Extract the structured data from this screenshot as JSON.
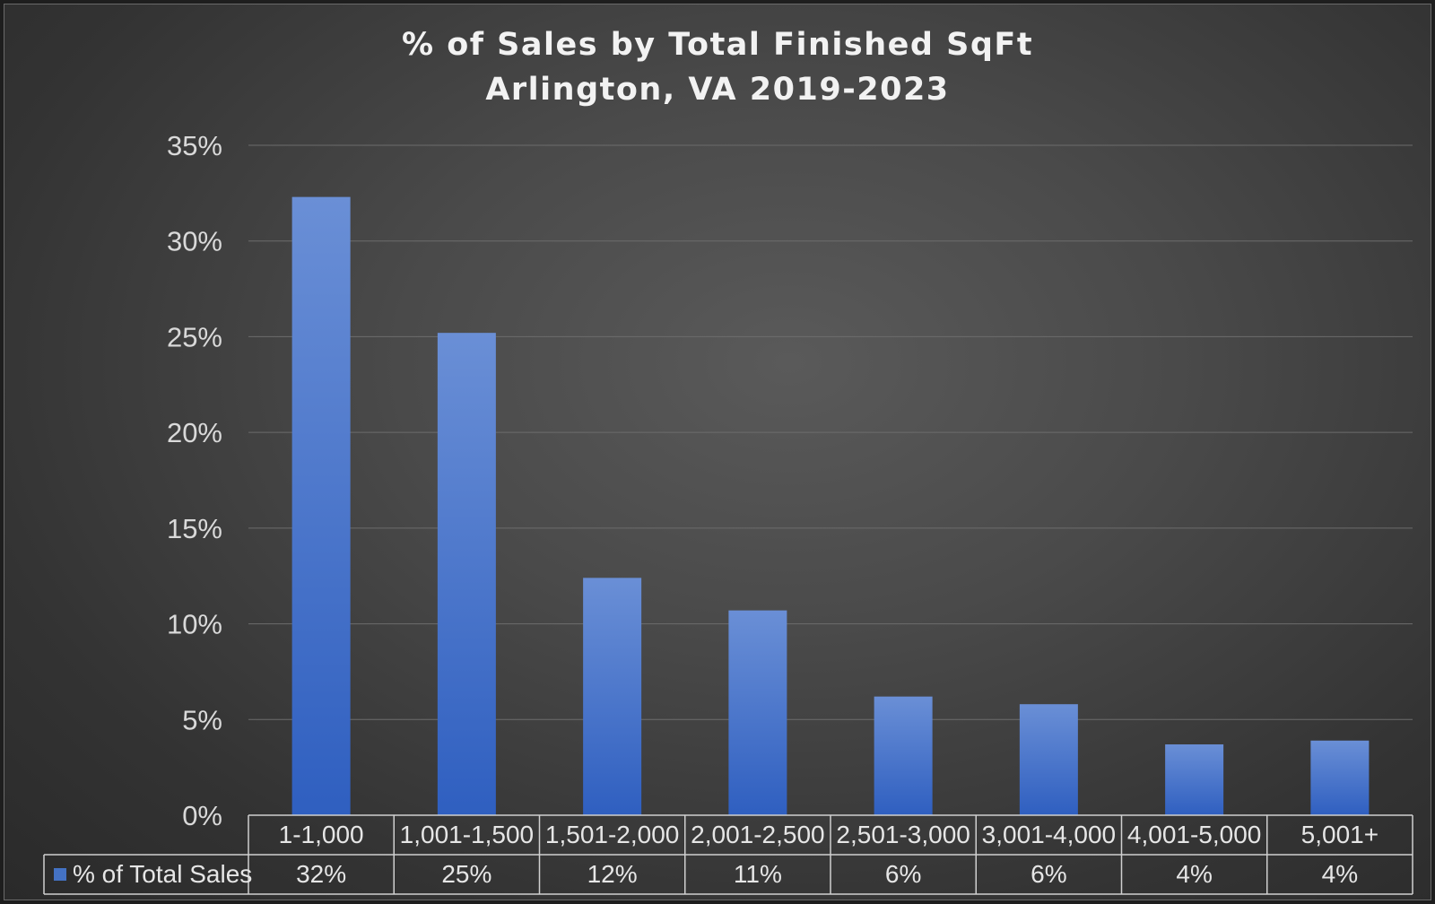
{
  "chart_data": {
    "type": "bar",
    "title": [
      "% of Sales by Total Finished SqFt",
      "Arlington, VA 2019-2023"
    ],
    "categories": [
      "1-1,000",
      "1,001-1,500",
      "1,501-2,000",
      "2,001-2,500",
      "2,501-3,000",
      "3,001-4,000",
      "4,001-5,000",
      "5,001+"
    ],
    "series": [
      {
        "name": "% of Total Sales",
        "values": [
          32.3,
          25.2,
          12.4,
          10.7,
          6.2,
          5.8,
          3.7,
          3.9
        ],
        "labels": [
          "32%",
          "25%",
          "12%",
          "11%",
          "6%",
          "6%",
          "4%",
          "4%"
        ]
      }
    ],
    "ylim": [
      0,
      35
    ],
    "yticks": [
      0,
      5,
      10,
      15,
      20,
      25,
      30,
      35
    ],
    "ytick_labels": [
      "0%",
      "5%",
      "10%",
      "15%",
      "20%",
      "25%",
      "30%",
      "35%"
    ],
    "grid": true,
    "legend": "data-table",
    "colors": {
      "bar_top": "#6a8fd6",
      "bar_bottom": "#2f5fc0",
      "legend_key": "#4472c4"
    }
  }
}
